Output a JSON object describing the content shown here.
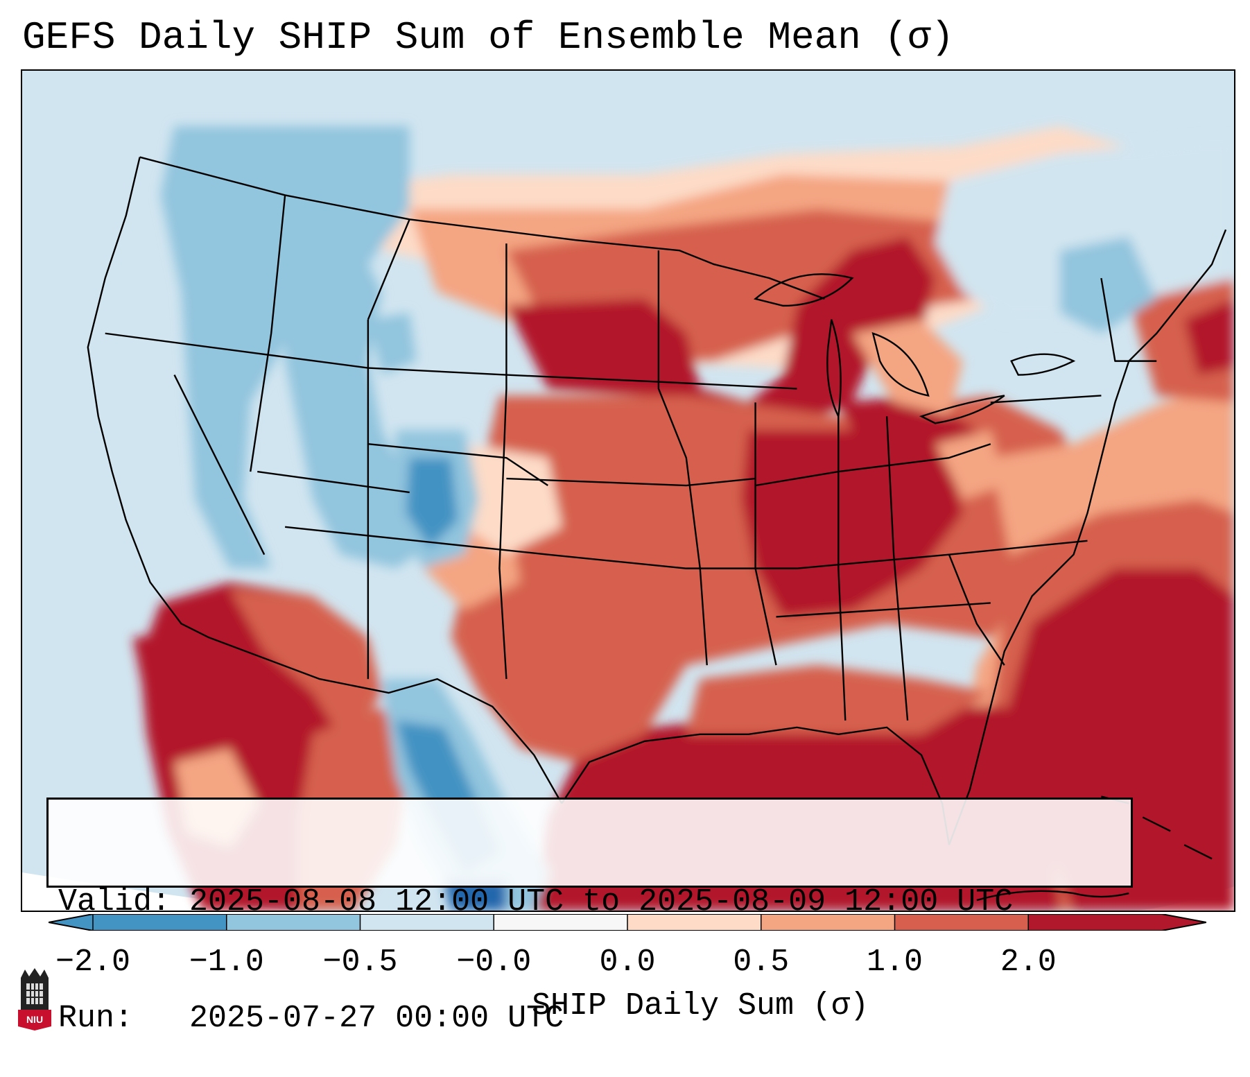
{
  "title": "GEFS Daily SHIP Sum of Ensemble Mean (σ)",
  "info": {
    "valid_line": "Valid: 2025-08-08 12:00 UTC to 2025-08-09 12:00 UTC",
    "run_line": "Run:   2025-07-27 00:00 UTC"
  },
  "colorbar": {
    "label": "SHIP Daily Sum (σ)",
    "ticks": [
      "−2.0",
      "−1.0",
      "−0.5",
      "−0.0",
      "0.0",
      "0.5",
      "1.0",
      "2.0"
    ],
    "colors": [
      "#4393c3",
      "#92c5de",
      "#d1e5f0",
      "#f7f7f7",
      "#fddbc7",
      "#f4a582",
      "#d6604d",
      "#b2182b"
    ]
  },
  "logo": {
    "text": "NIU"
  }
}
